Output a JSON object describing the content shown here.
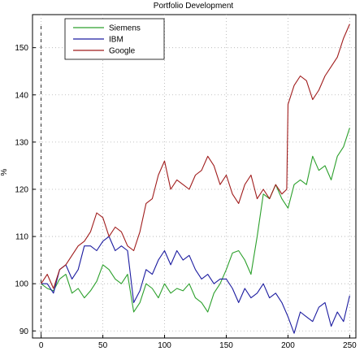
{
  "chart_data": {
    "type": "line",
    "title": "Portfolio Development",
    "xlabel": "",
    "ylabel": "%",
    "xlim": [
      -7,
      255
    ],
    "ylim": [
      88.5,
      157
    ],
    "xticks": [
      0,
      50,
      100,
      150,
      200,
      250
    ],
    "yticks": [
      90,
      100,
      110,
      120,
      130,
      140,
      150
    ],
    "grid": true,
    "legend": "top-left",
    "series": [
      {
        "name": "Siemens",
        "color": "#2ca02c",
        "x": [
          0,
          5,
          10,
          15,
          20,
          25,
          30,
          35,
          40,
          45,
          50,
          55,
          60,
          65,
          70,
          75,
          80,
          85,
          90,
          95,
          100,
          105,
          110,
          115,
          120,
          125,
          130,
          135,
          140,
          145,
          150,
          155,
          160,
          165,
          170,
          175,
          180,
          185,
          190,
          195,
          200,
          205,
          210,
          215,
          220,
          225,
          230,
          235,
          240,
          245,
          250
        ],
        "values": [
          100,
          99,
          98.5,
          101,
          102,
          98,
          99,
          97,
          98.5,
          100.5,
          104,
          103,
          101,
          100,
          102,
          94,
          96,
          100,
          99,
          97,
          100,
          98,
          99,
          98.5,
          100,
          97,
          96,
          94,
          98,
          100,
          103,
          106.5,
          107,
          105,
          102,
          110,
          119,
          118,
          121,
          118,
          116,
          121,
          122,
          121,
          127,
          124,
          125,
          122,
          127,
          129,
          133
        ]
      },
      {
        "name": "IBM",
        "color": "#1c1ca0",
        "x": [
          0,
          5,
          10,
          15,
          20,
          25,
          30,
          35,
          40,
          45,
          50,
          55,
          60,
          65,
          70,
          75,
          80,
          85,
          90,
          95,
          100,
          105,
          110,
          115,
          120,
          125,
          130,
          135,
          140,
          145,
          150,
          155,
          160,
          165,
          170,
          175,
          180,
          185,
          190,
          195,
          200,
          205,
          210,
          215,
          220,
          225,
          230,
          235,
          240,
          245,
          250
        ],
        "values": [
          100,
          100,
          98,
          103,
          104,
          101,
          103,
          108,
          108,
          107,
          109,
          110,
          107,
          108,
          107,
          96,
          98.5,
          103,
          102,
          105,
          107,
          104,
          107,
          105,
          106,
          103,
          101,
          102,
          100,
          101,
          101,
          99,
          96,
          99,
          97,
          98,
          100,
          97,
          98,
          96,
          93,
          89.5,
          94,
          93,
          92,
          95,
          96,
          91,
          94,
          92,
          97.5
        ]
      },
      {
        "name": "Google",
        "color": "#a01c1c",
        "x": [
          0,
          5,
          10,
          15,
          20,
          25,
          30,
          35,
          40,
          45,
          50,
          55,
          60,
          65,
          70,
          75,
          80,
          85,
          90,
          95,
          100,
          105,
          110,
          115,
          120,
          125,
          130,
          135,
          140,
          145,
          150,
          155,
          160,
          165,
          170,
          175,
          180,
          185,
          190,
          195,
          199,
          200,
          205,
          210,
          215,
          220,
          225,
          230,
          235,
          240,
          245,
          250
        ],
        "values": [
          100,
          102,
          99,
          103,
          104,
          106,
          108,
          109,
          111,
          115,
          114,
          110,
          112,
          111,
          108,
          107,
          111,
          117,
          118,
          123,
          126,
          120,
          122,
          121,
          120,
          123,
          124,
          127,
          125,
          121,
          123,
          119,
          117,
          121,
          123,
          118,
          120,
          118,
          121,
          119,
          120,
          138,
          142,
          144,
          143,
          139,
          141,
          144,
          146,
          148,
          152,
          155
        ]
      }
    ]
  }
}
